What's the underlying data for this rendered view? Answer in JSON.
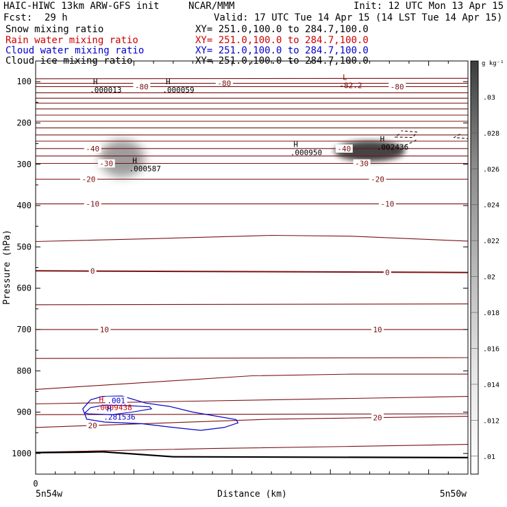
{
  "header": {
    "model": "HAIC-HIWC 13km ARW-GFS init",
    "org": "NCAR/MMM",
    "init": "Init: 12 UTC Mon 13 Apr 15",
    "fcst_label": "Fcst:",
    "fcst_value": "29 h",
    "valid": "Valid: 17 UTC Tue 14 Apr 15 (14 LST Tue 14 Apr 15)"
  },
  "legend": [
    {
      "name": "Snow mixing ratio",
      "xy": "XY= 251.0,100.0 to 284.7,100.0",
      "color": "#000000"
    },
    {
      "name": "Rain water mixing ratio",
      "xy": "XY= 251.0,100.0 to 284.7,100.0",
      "color": "#cc0000"
    },
    {
      "name": "Cloud water mixing ratio",
      "xy": "XY= 251.0,100.0 to 284.7,100.0",
      "color": "#0000cc"
    },
    {
      "name": "Cloud ice mixing ratio",
      "xy": "XY= 251.0,100.0 to 284.7,100.0",
      "color": "#000000"
    }
  ],
  "chart_data": {
    "type": "cross-section contour",
    "ylabel": "Pressure (hPa)",
    "xlabel": "Distance (km)",
    "x_left_label": "5n54w",
    "x_right_label": "5n50w",
    "x_origin_label": "0",
    "ylim": [
      1050,
      50
    ],
    "y_ticks": [
      100,
      200,
      300,
      400,
      500,
      600,
      700,
      800,
      900,
      1000
    ],
    "xlim": [
      0,
      22
    ],
    "colorbar": {
      "unit": "g kg⁻¹",
      "ticks": [
        ".01",
        ".012",
        ".014",
        ".016",
        ".018",
        ".02",
        ".022",
        ".024",
        ".026",
        ".028",
        ".03"
      ],
      "values": [
        0.01,
        0.012,
        0.014,
        0.016,
        0.018,
        0.02,
        0.022,
        0.024,
        0.026,
        0.028,
        0.03
      ],
      "min": 0.009,
      "max": 0.032
    },
    "temperature_contours": [
      {
        "pts": [
          [
            0,
            93
          ],
          [
            22,
            92
          ]
        ],
        "labels": []
      },
      {
        "pts": [
          [
            0,
            104
          ],
          [
            22,
            104
          ]
        ],
        "labels": [
          {
            "t": "-80",
            "x": 9.6
          }
        ]
      },
      {
        "pts": [
          [
            0,
            112
          ],
          [
            22,
            112
          ]
        ],
        "labels": [
          {
            "t": "-80",
            "x": 5.4
          },
          {
            "t": "-80",
            "x": 18.4
          }
        ]
      },
      {
        "pts": [
          [
            0,
            127
          ],
          [
            22,
            127
          ]
        ],
        "labels": []
      },
      {
        "pts": [
          [
            0,
            140
          ],
          [
            22,
            140
          ]
        ],
        "labels": []
      },
      {
        "pts": [
          [
            0,
            152
          ],
          [
            22,
            152
          ]
        ],
        "labels": []
      },
      {
        "pts": [
          [
            0,
            166
          ],
          [
            22,
            166
          ]
        ],
        "labels": []
      },
      {
        "pts": [
          [
            0,
            181
          ],
          [
            22,
            181
          ]
        ],
        "labels": []
      },
      {
        "pts": [
          [
            0,
            196
          ],
          [
            22,
            196
          ]
        ],
        "labels": []
      },
      {
        "pts": [
          [
            0,
            212
          ],
          [
            22,
            212
          ]
        ],
        "labels": []
      },
      {
        "pts": [
          [
            0,
            229
          ],
          [
            22,
            229
          ]
        ],
        "labels": []
      },
      {
        "pts": [
          [
            0,
            244
          ],
          [
            22,
            244
          ]
        ],
        "labels": []
      },
      {
        "pts": [
          [
            0,
            262
          ],
          [
            22,
            262
          ]
        ],
        "labels": [
          {
            "t": "-40",
            "x": 2.9
          },
          {
            "t": "-40",
            "x": 15.7
          }
        ]
      },
      {
        "pts": [
          [
            0,
            280
          ],
          [
            22,
            280
          ]
        ],
        "labels": []
      },
      {
        "pts": [
          [
            0,
            298
          ],
          [
            22,
            298
          ]
        ],
        "labels": [
          {
            "t": "-30",
            "x": 3.6
          },
          {
            "t": "-30",
            "x": 16.6
          }
        ]
      },
      {
        "pts": [
          [
            0,
            336
          ],
          [
            22,
            336
          ]
        ],
        "labels": [
          {
            "t": "-20",
            "x": 2.7
          },
          {
            "t": "-20",
            "x": 17.4
          }
        ]
      },
      {
        "pts": [
          [
            0,
            396
          ],
          [
            22,
            396
          ]
        ],
        "labels": [
          {
            "t": "-10",
            "x": 2.9
          },
          {
            "t": "-10",
            "x": 17.9
          }
        ]
      },
      {
        "pts": [
          [
            0,
            487
          ],
          [
            6,
            480
          ],
          [
            12,
            472
          ],
          [
            16,
            474
          ],
          [
            22,
            486
          ]
        ],
        "labels": []
      },
      {
        "pts": [
          [
            0,
            558
          ],
          [
            22,
            562
          ]
        ],
        "labels": [
          {
            "t": "0",
            "x": 2.9
          },
          {
            "t": "0",
            "x": 17.9
          }
        ],
        "bold": true
      },
      {
        "pts": [
          [
            0,
            640
          ],
          [
            22,
            638
          ]
        ],
        "labels": []
      },
      {
        "pts": [
          [
            0,
            700
          ],
          [
            22,
            700
          ]
        ],
        "labels": [
          {
            "t": "10",
            "x": 3.5
          },
          {
            "t": "10",
            "x": 17.4
          }
        ]
      },
      {
        "pts": [
          [
            0,
            770
          ],
          [
            22,
            768
          ]
        ],
        "labels": []
      },
      {
        "pts": [
          [
            0,
            845
          ],
          [
            11,
            812
          ],
          [
            16,
            808
          ],
          [
            22,
            808
          ]
        ],
        "labels": []
      },
      {
        "pts": [
          [
            0,
            880
          ],
          [
            22,
            862
          ]
        ],
        "labels": []
      },
      {
        "pts": [
          [
            0,
            906
          ],
          [
            22,
            904
          ]
        ],
        "labels": []
      },
      {
        "pts": [
          [
            0,
            937
          ],
          [
            12,
            917
          ],
          [
            22,
            910
          ]
        ],
        "labels": [
          {
            "t": "20",
            "x": 2.9
          },
          {
            "t": "20",
            "x": 17.4
          }
        ]
      },
      {
        "pts": [
          [
            0,
            997
          ],
          [
            9,
            988
          ],
          [
            16,
            983
          ],
          [
            22,
            978
          ]
        ],
        "labels": []
      }
    ],
    "terrain": [
      [
        0,
        998
      ],
      [
        2.4,
        997
      ],
      [
        3.4,
        996
      ],
      [
        7,
        1008
      ],
      [
        22,
        1010
      ]
    ],
    "gray_blobs": [
      {
        "x": 4.4,
        "p": 286,
        "rx": 1.15,
        "rp": 45
      },
      {
        "x": 17.0,
        "p": 268,
        "rx": 1.8,
        "rp": 25
      }
    ],
    "cloud_water_contours": [
      {
        "pts": [
          [
            2.4,
            892
          ],
          [
            2.8,
            870
          ],
          [
            3.4,
            862
          ],
          [
            4.4,
            861
          ],
          [
            5.6,
            878
          ],
          [
            6.8,
            886
          ],
          [
            8.0,
            900
          ],
          [
            10.2,
            918
          ],
          [
            10.3,
            926
          ],
          [
            9.6,
            937
          ],
          [
            8.4,
            944
          ],
          [
            7.0,
            937
          ],
          [
            5.4,
            928
          ],
          [
            3.5,
            924
          ],
          [
            2.6,
            917
          ],
          [
            2.4,
            892
          ]
        ],
        "label": ".001",
        "lx": 4.1,
        "lp": 872
      }
    ],
    "rain_contours": [
      {
        "pts": [
          [
            2.5,
            902
          ],
          [
            2.8,
            889
          ],
          [
            3.5,
            883
          ],
          [
            4.6,
            884
          ],
          [
            5.8,
            887
          ],
          [
            5.9,
            892
          ],
          [
            4.9,
            900
          ],
          [
            3.9,
            906
          ],
          [
            2.7,
            904
          ],
          [
            2.5,
            902
          ]
        ]
      }
    ],
    "cloud_ice_contours": [
      {
        "pts": [
          [
            18.5,
            227
          ],
          [
            18.3,
            234
          ],
          [
            19.2,
            235
          ],
          [
            19.4,
            222
          ],
          [
            18.6,
            219
          ]
        ],
        "dashed": true
      },
      {
        "pts": [
          [
            21.6,
            227
          ],
          [
            21.3,
            235
          ],
          [
            22.0,
            238
          ]
        ],
        "dashed": true
      },
      {
        "pts": [
          [
            18.8,
            254
          ],
          [
            19.2,
            246
          ],
          [
            19.4,
            240
          ]
        ],
        "dashed": true
      }
    ],
    "extrema": [
      {
        "type": "H",
        "value": ".000013",
        "x": 2.9,
        "p": 106,
        "color": "#000000"
      },
      {
        "type": "H",
        "value": ".000059",
        "x": 6.6,
        "p": 106,
        "color": "#000000"
      },
      {
        "type": "L",
        "value": "-82.2",
        "x": 15.6,
        "p": 96,
        "color": "#800000"
      },
      {
        "type": "H",
        "value": ".000587",
        "x": 4.9,
        "p": 297,
        "color": "#000000"
      },
      {
        "type": "H",
        "value": ".000950",
        "x": 13.1,
        "p": 258,
        "color": "#000000"
      },
      {
        "type": "H",
        "value": ".002436",
        "x": 17.5,
        "p": 245,
        "color": "#000000"
      },
      {
        "type": "H",
        "value": ".0009438",
        "x": 3.2,
        "p": 875,
        "color": "#cc0000"
      },
      {
        "type": "H",
        "value": ".281536",
        "x": 3.6,
        "p": 898,
        "color": "#0000cc"
      }
    ]
  }
}
